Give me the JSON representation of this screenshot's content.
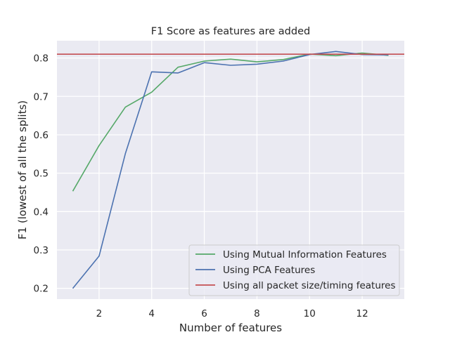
{
  "chart_data": {
    "type": "line",
    "title": "F1 Score as features are added",
    "xlabel": "Number of features",
    "ylabel": "F1 (lowest of all the splits)",
    "xlim": [
      0.4,
      13.6
    ],
    "ylim": [
      0.172,
      0.845
    ],
    "xticks": [
      2,
      4,
      6,
      8,
      10,
      12
    ],
    "yticks": [
      0.2,
      0.3,
      0.4,
      0.5,
      0.6,
      0.7,
      0.8
    ],
    "grid": true,
    "legend_position": "lower-right",
    "x": [
      1,
      2,
      3,
      4,
      5,
      6,
      7,
      8,
      9,
      10,
      11,
      12,
      13
    ],
    "series": [
      {
        "name": "Using Mutual Information Features",
        "color": "#55a868",
        "values": [
          0.453,
          0.572,
          0.672,
          0.711,
          0.776,
          0.792,
          0.797,
          0.79,
          0.796,
          0.81,
          0.806,
          0.813,
          0.807
        ]
      },
      {
        "name": "Using PCA Features",
        "color": "#4c72b0",
        "values": [
          0.2,
          0.284,
          0.551,
          0.764,
          0.761,
          0.788,
          0.781,
          0.784,
          0.792,
          0.809,
          0.817,
          0.809,
          0.808
        ]
      },
      {
        "name": "Using all packet size/timing features",
        "color": "#c44e52",
        "type": "hline",
        "value": 0.81
      }
    ]
  }
}
